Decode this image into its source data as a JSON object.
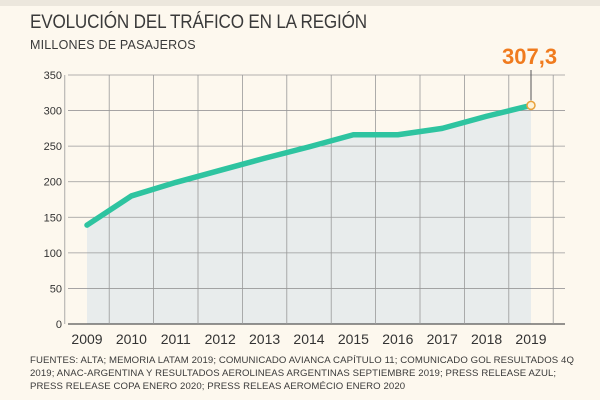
{
  "title": "EVOLUCIÓN DEL TRÁFICO EN LA REGIÓN",
  "subtitle": "MILLONES DE PASAJEROS",
  "callout": "307,3",
  "source": "FUENTES: ALTA; MEMORIA LATAM 2019; COMUNICADO AVIANCA CAPÍTULO 11; COMUNICADO GOL RESULTADOS 4Q 2019; ANAC-ARGENTINA Y RESULTADOS AEROLINEAS ARGENTINAS SEPTIEMBRE 2019; PRESS RELEASE AZUL; PRESS RELEASE COPA ENERO 2020; PRESS RELEAS AEROMÉCIO ENERO 2020",
  "colors": {
    "line": "#2ec4a0",
    "area": "#e8ecec",
    "grid": "#999999",
    "accent": "#f07b1e"
  },
  "chart_data": {
    "type": "area",
    "title": "EVOLUCIÓN DEL TRÁFICO EN LA REGIÓN",
    "ylabel": "MILLONES DE PASAJEROS",
    "xlabel": "",
    "categories": [
      "2009",
      "2010",
      "2011",
      "2012",
      "2013",
      "2014",
      "2015",
      "2016",
      "2017",
      "2018",
      "2019"
    ],
    "series": [
      {
        "name": "Millones de pasajeros",
        "values": [
          139,
          180,
          199,
          216,
          233,
          249,
          266,
          266,
          275,
          292,
          307.3
        ]
      }
    ],
    "ylim": [
      0,
      350
    ],
    "yticks": [
      "0",
      "50",
      "100",
      "150",
      "200",
      "250",
      "300",
      "350"
    ],
    "grid": true,
    "highlight": {
      "category": "2019",
      "label": "307,3"
    }
  }
}
